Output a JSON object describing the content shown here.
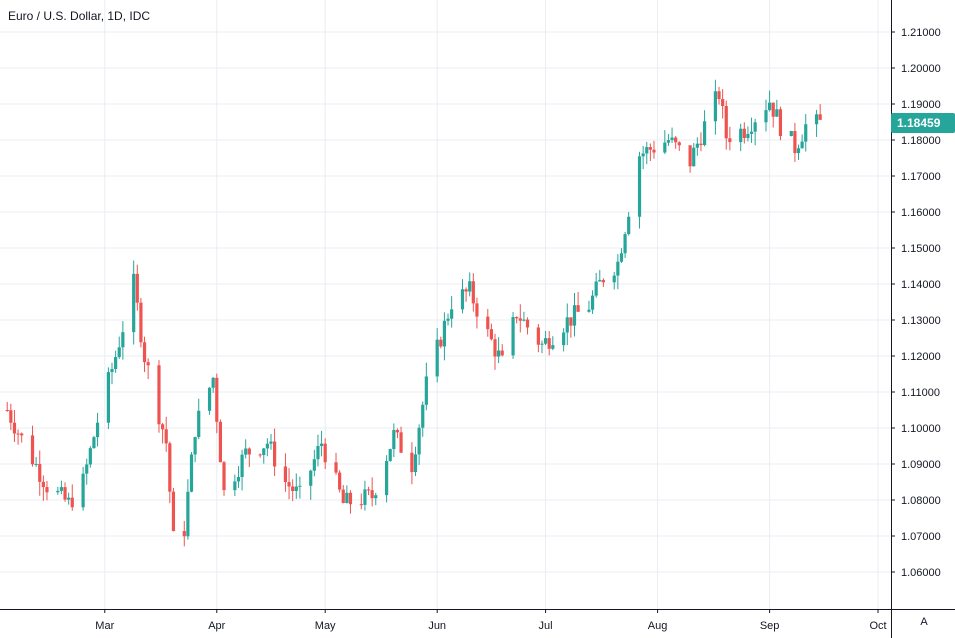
{
  "header": {
    "title": "Euro / U.S. Dollar, 1D, IDC"
  },
  "price_scale": {
    "last_price_label": "1.18459",
    "auto_label": "A"
  },
  "colors": {
    "up": "#26a69a",
    "down": "#ef5350",
    "grid": "#e9edf3",
    "axis": "#131722",
    "last_price_bg": "#26a69a"
  },
  "chart_data": {
    "type": "candlestick",
    "title": "Euro / U.S. Dollar, 1D, IDC",
    "symbol": "EURUSD",
    "interval": "1D",
    "source": "IDC",
    "ylim": [
      1.05,
      1.215
    ],
    "y_ticks": [
      "1.06000",
      "1.07000",
      "1.08000",
      "1.09000",
      "1.10000",
      "1.11000",
      "1.12000",
      "1.13000",
      "1.14000",
      "1.15000",
      "1.16000",
      "1.17000",
      "1.18000",
      "1.19000",
      "1.20000",
      "1.21000"
    ],
    "x_ticks": [
      "Mar",
      "Apr",
      "May",
      "Jun",
      "Jul",
      "Aug",
      "Sep",
      "Oct"
    ],
    "grid": true,
    "last_price": 1.18459,
    "anchors": [
      [
        "2020-02-03",
        1.105
      ],
      [
        "2020-02-07",
        1.097
      ],
      [
        "2020-02-10",
        1.0915
      ],
      [
        "2020-02-14",
        1.084
      ],
      [
        "2020-02-20",
        1.079
      ],
      [
        "2020-02-24",
        1.085
      ],
      [
        "2020-02-28",
        1.102
      ],
      [
        "2020-03-04",
        1.12
      ],
      [
        "2020-03-09",
        1.14
      ],
      [
        "2020-03-12",
        1.12
      ],
      [
        "2020-03-18",
        1.096
      ],
      [
        "2020-03-20",
        1.069
      ],
      [
        "2020-03-23",
        1.072
      ],
      [
        "2020-03-26",
        1.1
      ],
      [
        "2020-03-31",
        1.114
      ],
      [
        "2020-04-03",
        1.082
      ],
      [
        "2020-04-09",
        1.093
      ],
      [
        "2020-04-15",
        1.096
      ],
      [
        "2020-04-20",
        1.085
      ],
      [
        "2020-04-24",
        1.081
      ],
      [
        "2020-04-30",
        1.096
      ],
      [
        "2020-05-06",
        1.079
      ],
      [
        "2020-05-14",
        1.081
      ],
      [
        "2020-05-20",
        1.098
      ],
      [
        "2020-05-25",
        1.09
      ],
      [
        "2020-05-29",
        1.112
      ],
      [
        "2020-06-05",
        1.135
      ],
      [
        "2020-06-10",
        1.138
      ],
      [
        "2020-06-15",
        1.126
      ],
      [
        "2020-06-19",
        1.118
      ],
      [
        "2020-06-23",
        1.132
      ],
      [
        "2020-06-30",
        1.123
      ],
      [
        "2020-07-06",
        1.129
      ],
      [
        "2020-07-13",
        1.134
      ],
      [
        "2020-07-17",
        1.142
      ],
      [
        "2020-07-21",
        1.146
      ],
      [
        "2020-07-27",
        1.176
      ],
      [
        "2020-07-31",
        1.178
      ],
      [
        "2020-08-04",
        1.18
      ],
      [
        "2020-08-10",
        1.174
      ],
      [
        "2020-08-14",
        1.184
      ],
      [
        "2020-08-18",
        1.193
      ],
      [
        "2020-08-20",
        1.181
      ],
      [
        "2020-08-25",
        1.183
      ],
      [
        "2020-09-01",
        1.191
      ],
      [
        "2020-09-04",
        1.184
      ],
      [
        "2020-09-08",
        1.178
      ],
      [
        "2020-09-11",
        1.184
      ],
      [
        "2020-09-15",
        1.1846
      ]
    ]
  }
}
